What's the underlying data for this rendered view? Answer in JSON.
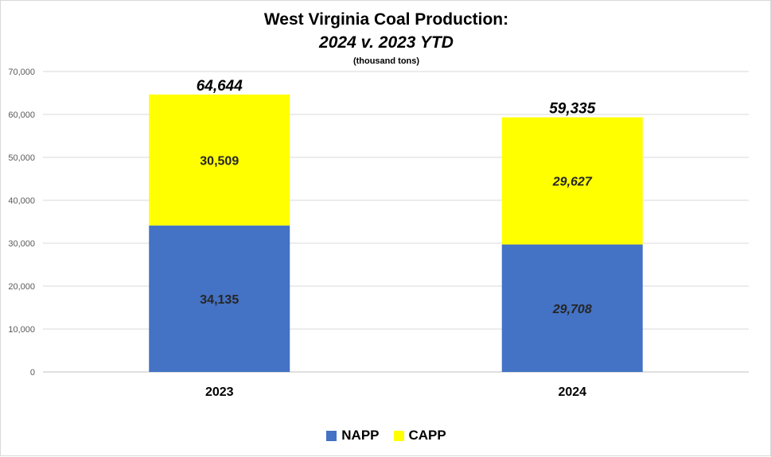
{
  "chart_data": {
    "type": "bar",
    "stacked": true,
    "title": "West Virginia Coal Production:",
    "subtitle": "2024 v. 2023 YTD",
    "units_note": "(thousand tons)",
    "categories": [
      "2023",
      "2024"
    ],
    "series": [
      {
        "name": "NAPP",
        "color": "#4472c4",
        "values": [
          34135,
          29708
        ]
      },
      {
        "name": "CAPP",
        "color": "#ffff00",
        "values": [
          30509,
          29627
        ]
      }
    ],
    "totals": [
      64644,
      59335
    ],
    "segment_labels": [
      [
        "34,135",
        "29,708"
      ],
      [
        "30,509",
        "29,627"
      ]
    ],
    "total_labels": [
      "64,644",
      "59,335"
    ],
    "italic_labels_for_category": [
      false,
      true
    ],
    "ylim": [
      0,
      70000
    ],
    "yticks": [
      "0",
      "10,000",
      "20,000",
      "30,000",
      "40,000",
      "50,000",
      "60,000",
      "70,000"
    ],
    "ytick_values": [
      0,
      10000,
      20000,
      30000,
      40000,
      50000,
      60000,
      70000
    ],
    "grid": true,
    "legend_position": "bottom"
  }
}
